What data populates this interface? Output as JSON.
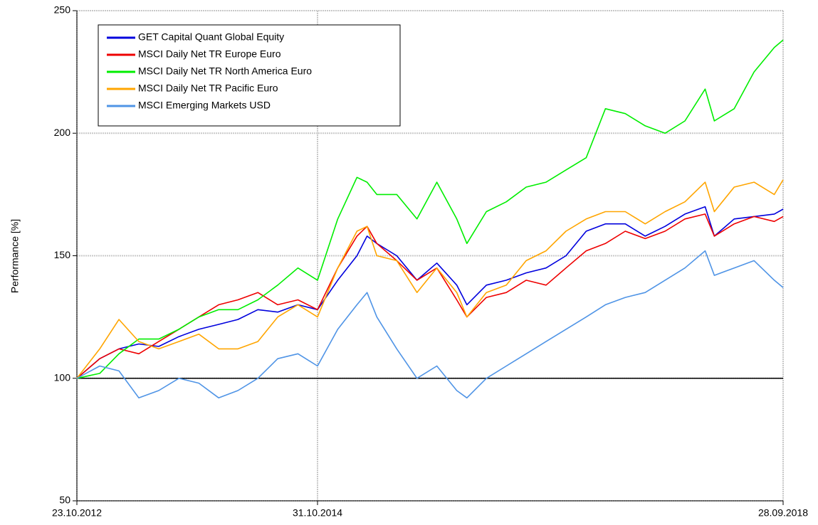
{
  "chart_data": {
    "type": "line",
    "ylabel": "Performance [%]",
    "x": [
      "23.10.2012",
      "01.01.2013",
      "01.03.2013",
      "01.05.2013",
      "01.07.2013",
      "01.09.2013",
      "01.11.2013",
      "01.01.2014",
      "01.03.2014",
      "01.05.2014",
      "01.07.2014",
      "01.09.2014",
      "31.10.2014",
      "01.01.2015",
      "01.03.2015",
      "01.04.2015",
      "01.05.2015",
      "01.07.2015",
      "01.09.2015",
      "01.11.2015",
      "01.01.2016",
      "01.02.2016",
      "01.04.2016",
      "01.06.2016",
      "01.08.2016",
      "01.10.2016",
      "01.12.2016",
      "01.02.2017",
      "01.04.2017",
      "01.06.2017",
      "01.08.2017",
      "01.10.2017",
      "01.12.2017",
      "01.02.2018",
      "01.03.2018",
      "01.05.2018",
      "01.07.2018",
      "01.09.2018",
      "28.09.2018"
    ],
    "series": [
      {
        "name": "GET Capital Quant Global Equity",
        "color": "#0000dd",
        "values": [
          100,
          108,
          112,
          114,
          113,
          117,
          120,
          122,
          124,
          128,
          127,
          130,
          128,
          140,
          150,
          158,
          155,
          150,
          140,
          147,
          138,
          130,
          138,
          140,
          143,
          145,
          150,
          160,
          163,
          163,
          158,
          162,
          167,
          170,
          158,
          165,
          166,
          167,
          169
        ]
      },
      {
        "name": "MSCI Daily Net TR Europe Euro",
        "color": "#ee0000",
        "values": [
          100,
          108,
          112,
          110,
          115,
          120,
          125,
          130,
          132,
          135,
          130,
          132,
          128,
          145,
          158,
          162,
          155,
          148,
          140,
          145,
          132,
          125,
          133,
          135,
          140,
          138,
          145,
          152,
          155,
          160,
          157,
          160,
          165,
          167,
          158,
          163,
          166,
          164,
          166
        ]
      },
      {
        "name": "MSCI Daily Net TR North America Euro",
        "color": "#00ee00",
        "values": [
          100,
          102,
          110,
          116,
          116,
          120,
          125,
          128,
          128,
          132,
          138,
          145,
          140,
          165,
          182,
          180,
          175,
          175,
          165,
          180,
          165,
          155,
          168,
          172,
          178,
          180,
          185,
          190,
          210,
          208,
          203,
          200,
          205,
          218,
          205,
          210,
          225,
          235,
          238
        ]
      },
      {
        "name": "MSCI Daily Net TR Pacific Euro",
        "color": "#ffa500",
        "values": [
          100,
          112,
          124,
          115,
          112,
          115,
          118,
          112,
          112,
          115,
          125,
          130,
          125,
          145,
          160,
          162,
          150,
          148,
          135,
          145,
          135,
          125,
          135,
          138,
          148,
          152,
          160,
          165,
          168,
          168,
          163,
          168,
          172,
          180,
          168,
          178,
          180,
          175,
          181
        ]
      },
      {
        "name": "MSCI Emerging Markets USD",
        "color": "#4f94e6",
        "values": [
          100,
          105,
          103,
          92,
          95,
          100,
          98,
          92,
          95,
          100,
          108,
          110,
          105,
          120,
          130,
          135,
          125,
          112,
          100,
          105,
          95,
          92,
          100,
          105,
          110,
          115,
          120,
          125,
          130,
          133,
          135,
          140,
          145,
          152,
          142,
          145,
          148,
          140,
          137
        ]
      }
    ],
    "xlim": [
      "23.10.2012",
      "28.09.2018"
    ],
    "xticks": [
      "23.10.2012",
      "31.10.2014",
      "28.09.2018"
    ],
    "ylim": [
      50,
      250
    ],
    "yticks": [
      50,
      100,
      150,
      200,
      250
    ],
    "reference_line": 100,
    "grid": true,
    "legend": "upper-left"
  }
}
